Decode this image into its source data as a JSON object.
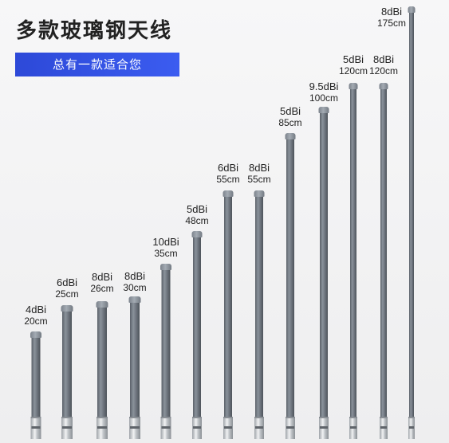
{
  "title": "多款玻璃钢天线",
  "banner": "总有一款适合您",
  "antennas": [
    {
      "gain": "4dBi",
      "length": "20cm"
    },
    {
      "gain": "6dBi",
      "length": "25cm"
    },
    {
      "gain": "8dBi",
      "length": "26cm"
    },
    {
      "gain": "8dBi",
      "length": "30cm"
    },
    {
      "gain": "10dBi",
      "length": "35cm"
    },
    {
      "gain": "5dBi",
      "length": "48cm"
    },
    {
      "gain": "6dBi",
      "length": "55cm"
    },
    {
      "gain": "8dBi",
      "length": "55cm"
    },
    {
      "gain": "5dBi",
      "length": "85cm"
    },
    {
      "gain": "9.5dBi",
      "length": "100cm"
    },
    {
      "gain": "5dBi",
      "length": "120cm"
    },
    {
      "gain": "8dBi",
      "length": "120cm"
    },
    {
      "gain": "8dBi",
      "length": "175cm"
    }
  ],
  "colors": {
    "banner": "#3050e8",
    "rod": "#6d747d",
    "connector": "#d8dbde"
  }
}
